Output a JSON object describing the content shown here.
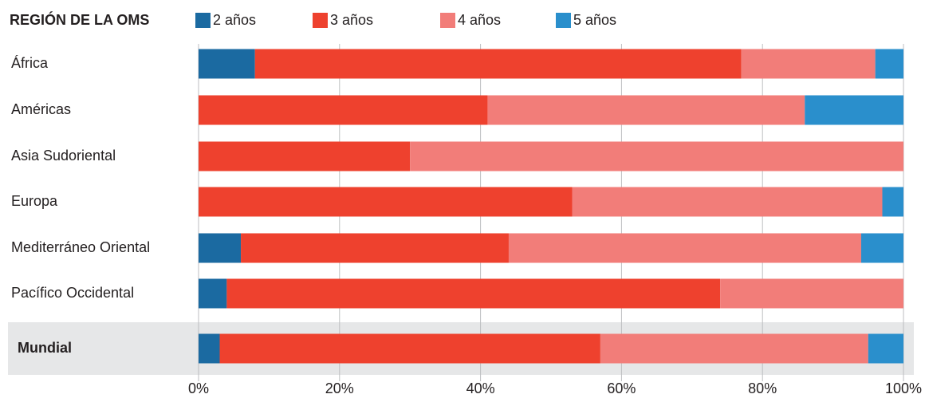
{
  "chart_data": {
    "type": "stacked_barh",
    "y_label": "REGIÓN DE LA OMS",
    "categories": [
      "África",
      "Américas",
      "Asia Sudoriental",
      "Europa",
      "Mediterráneo Oriental",
      "Pacífico Occidental",
      "Mundial"
    ],
    "series": [
      {
        "name": "2 años",
        "color": "#1b6aa1",
        "values": [
          8,
          0,
          0,
          0,
          6,
          4,
          3
        ]
      },
      {
        "name": "3 años",
        "color": "#ee412e",
        "values": [
          69,
          41,
          30,
          53,
          38,
          70,
          54
        ]
      },
      {
        "name": "4 años",
        "color": "#f27d79",
        "values": [
          19,
          45,
          70,
          44,
          50,
          26,
          38
        ]
      },
      {
        "name": "5 años",
        "color": "#2a8fcc",
        "values": [
          4,
          14,
          0,
          3,
          6,
          0,
          5
        ]
      }
    ],
    "xlim": [
      0,
      100
    ],
    "xticks": [
      {
        "value": 0,
        "label": "0%"
      },
      {
        "value": 20,
        "label": "20%"
      },
      {
        "value": 40,
        "label": "40%"
      },
      {
        "value": 60,
        "label": "60%"
      },
      {
        "value": 80,
        "label": "80%"
      },
      {
        "value": 100,
        "label": "100%"
      }
    ],
    "grid": true
  }
}
